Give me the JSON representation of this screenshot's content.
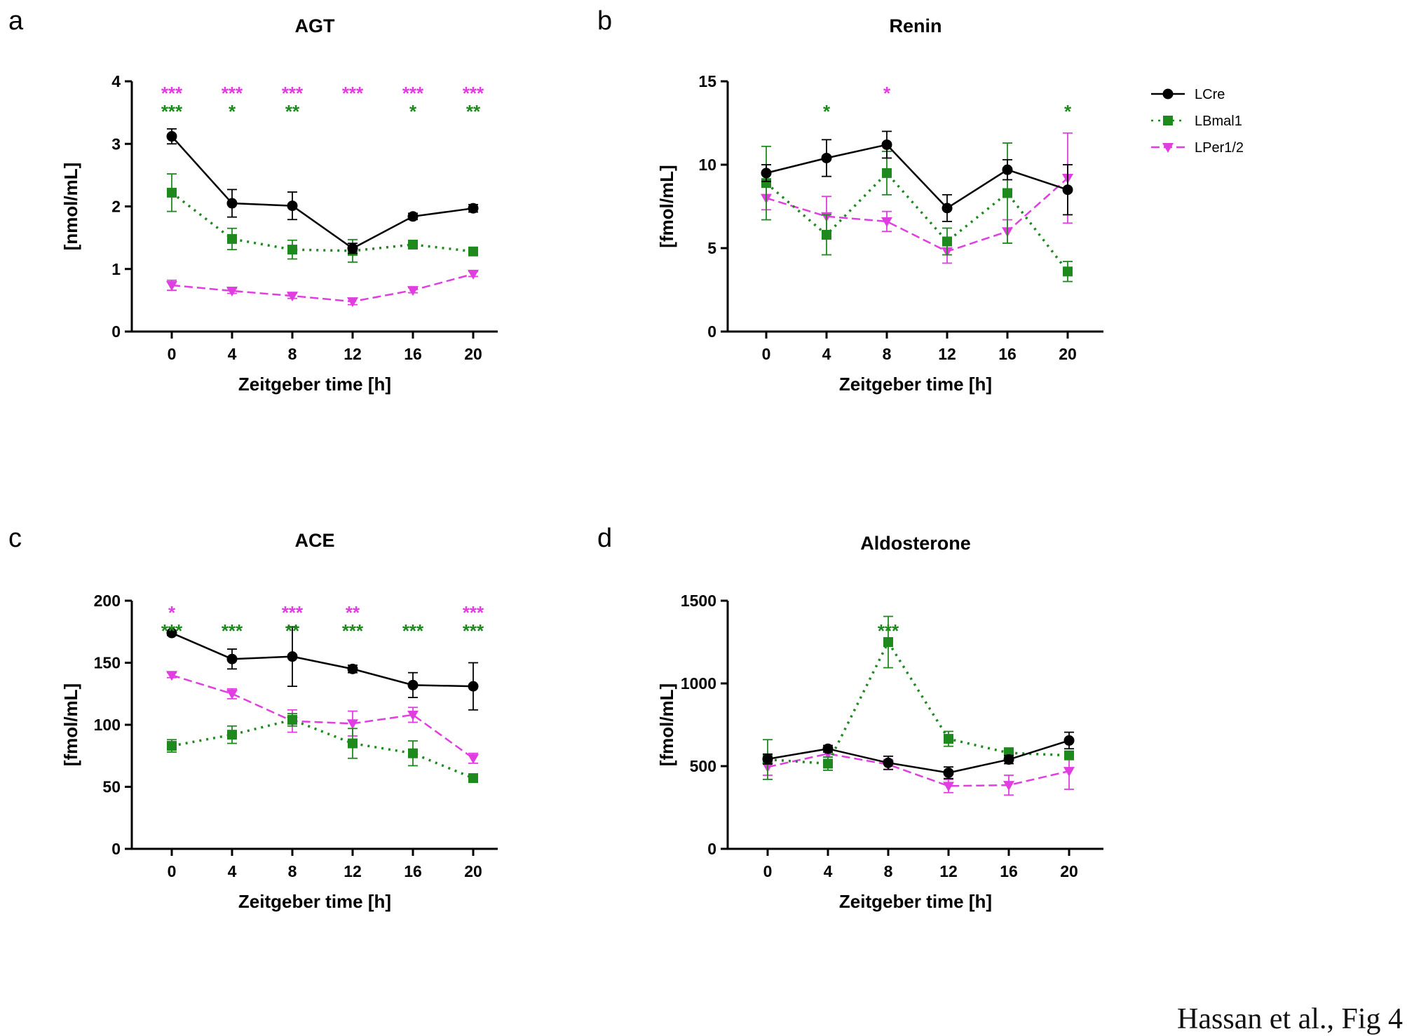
{
  "figure": {
    "caption": "Hassan et al., Fig 4",
    "colors": {
      "LCre": "#000000",
      "LBmal1": "#1e8a1e",
      "LPer1/2": "#e03ee0"
    }
  },
  "legend": {
    "placement": "right of panel b",
    "entries": [
      {
        "name": "LCre",
        "marker": "circle",
        "line": "solid"
      },
      {
        "name": "LBmal1",
        "marker": "square",
        "line": "dotted"
      },
      {
        "name": "LPer1/2",
        "marker": "triangle-down",
        "line": "dashed"
      }
    ]
  },
  "chart_data": [
    {
      "panel_letter": "a",
      "type": "line",
      "title": "AGT",
      "xlabel": "Zeitgeber time [h]",
      "ylabel": "[nmol/mL]",
      "x": [
        0,
        4,
        8,
        12,
        16,
        20
      ],
      "xticks": [
        "0",
        "4",
        "8",
        "12",
        "16",
        "20"
      ],
      "ylim": [
        0,
        4
      ],
      "yticks": [
        "0",
        "1",
        "2",
        "3",
        "4"
      ],
      "series": [
        {
          "name": "LCre",
          "values": [
            3.12,
            2.05,
            2.01,
            1.33,
            1.84,
            1.97
          ],
          "errors": [
            0.12,
            0.22,
            0.22,
            0.08,
            0.05,
            0.06
          ]
        },
        {
          "name": "LBmal1",
          "values": [
            2.22,
            1.48,
            1.31,
            1.29,
            1.39,
            1.28
          ],
          "errors": [
            0.3,
            0.17,
            0.15,
            0.18,
            0.05,
            0.04
          ]
        },
        {
          "name": "LPer1/2",
          "values": [
            0.74,
            0.65,
            0.57,
            0.48,
            0.66,
            0.92
          ],
          "errors": [
            0.08,
            0.04,
            0.04,
            0.05,
            0.04,
            0.04
          ]
        }
      ],
      "significance": [
        {
          "x": 0,
          "upper": "***",
          "lower": "***"
        },
        {
          "x": 4,
          "upper": "***",
          "lower": "*"
        },
        {
          "x": 8,
          "upper": "***",
          "lower": "**"
        },
        {
          "x": 12,
          "upper": "***",
          "lower": ""
        },
        {
          "x": 16,
          "upper": "***",
          "lower": "*"
        },
        {
          "x": 20,
          "upper": "***",
          "lower": "**"
        }
      ]
    },
    {
      "panel_letter": "b",
      "type": "line",
      "title": "Renin",
      "xlabel": "Zeitgeber time [h]",
      "ylabel": "[fmol/mL]",
      "x": [
        0,
        4,
        8,
        12,
        16,
        20
      ],
      "xticks": [
        "0",
        "4",
        "8",
        "12",
        "16",
        "20"
      ],
      "ylim": [
        0,
        15
      ],
      "yticks": [
        "0",
        "5",
        "10",
        "15"
      ],
      "series": [
        {
          "name": "LCre",
          "values": [
            9.5,
            10.4,
            11.2,
            7.4,
            9.7,
            8.5
          ],
          "errors": [
            0.5,
            1.1,
            0.8,
            0.8,
            0.6,
            1.5
          ]
        },
        {
          "name": "LBmal1",
          "values": [
            8.9,
            5.8,
            9.5,
            5.4,
            8.3,
            3.6
          ],
          "errors": [
            2.2,
            1.2,
            1.3,
            0.8,
            3.0,
            0.6
          ]
        },
        {
          "name": "LPer1/2",
          "values": [
            8.0,
            6.9,
            6.6,
            4.8,
            6.0,
            9.2
          ],
          "errors": [
            0.7,
            1.2,
            0.6,
            0.7,
            0.7,
            2.7
          ]
        }
      ],
      "significance": [
        {
          "x": 4,
          "upper": "",
          "lower": "*"
        },
        {
          "x": 8,
          "upper": "*",
          "lower": ""
        },
        {
          "x": 20,
          "upper": "",
          "lower": "*"
        }
      ]
    },
    {
      "panel_letter": "c",
      "type": "line",
      "title": "ACE",
      "xlabel": "Zeitgeber time [h]",
      "ylabel": "[fmol/mL]",
      "x": [
        0,
        4,
        8,
        12,
        16,
        20
      ],
      "xticks": [
        "0",
        "4",
        "8",
        "12",
        "16",
        "20"
      ],
      "ylim": [
        0,
        200
      ],
      "yticks": [
        "0",
        "50",
        "100",
        "150",
        "200"
      ],
      "series": [
        {
          "name": "LCre",
          "values": [
            174,
            153,
            155,
            145,
            132,
            131
          ],
          "errors": [
            2,
            8,
            24,
            3,
            10,
            19
          ]
        },
        {
          "name": "LBmal1",
          "values": [
            83,
            92,
            104,
            85,
            77,
            57
          ],
          "errors": [
            5,
            7,
            5,
            12,
            10,
            2
          ]
        },
        {
          "name": "LPer1/2",
          "values": [
            140,
            125,
            103,
            101,
            108,
            73
          ],
          "errors": [
            2,
            4,
            9,
            10,
            6,
            4
          ]
        }
      ],
      "significance": [
        {
          "x": 0,
          "upper": "*",
          "lower": "***"
        },
        {
          "x": 4,
          "upper": "",
          "lower": "***"
        },
        {
          "x": 8,
          "upper": "***",
          "lower": "**"
        },
        {
          "x": 12,
          "upper": "**",
          "lower": "***"
        },
        {
          "x": 16,
          "upper": "",
          "lower": "***"
        },
        {
          "x": 20,
          "upper": "***",
          "lower": "***"
        }
      ]
    },
    {
      "panel_letter": "d",
      "type": "line",
      "title": "Aldosterone",
      "xlabel": "Zeitgeber time [h]",
      "ylabel": "[fmol/mL]",
      "x": [
        0,
        4,
        8,
        12,
        16,
        20
      ],
      "xticks": [
        "0",
        "4",
        "8",
        "12",
        "16",
        "20"
      ],
      "ylim": [
        0,
        1500
      ],
      "yticks": [
        "0",
        "500",
        "1000",
        "1500"
      ],
      "series": [
        {
          "name": "LCre",
          "values": [
            543,
            605,
            520,
            460,
            540,
            655
          ],
          "errors": [
            30,
            20,
            40,
            35,
            25,
            50
          ]
        },
        {
          "name": "LBmal1",
          "values": [
            540,
            515,
            1250,
            665,
            580,
            565
          ],
          "errors": [
            120,
            40,
            155,
            45,
            30,
            25
          ]
        },
        {
          "name": "LPer1/2",
          "values": [
            495,
            575,
            510,
            380,
            385,
            470
          ],
          "errors": [
            50,
            20,
            30,
            40,
            60,
            110
          ]
        }
      ],
      "significance": [
        {
          "x": 8,
          "upper": "",
          "lower": "***"
        }
      ]
    }
  ]
}
